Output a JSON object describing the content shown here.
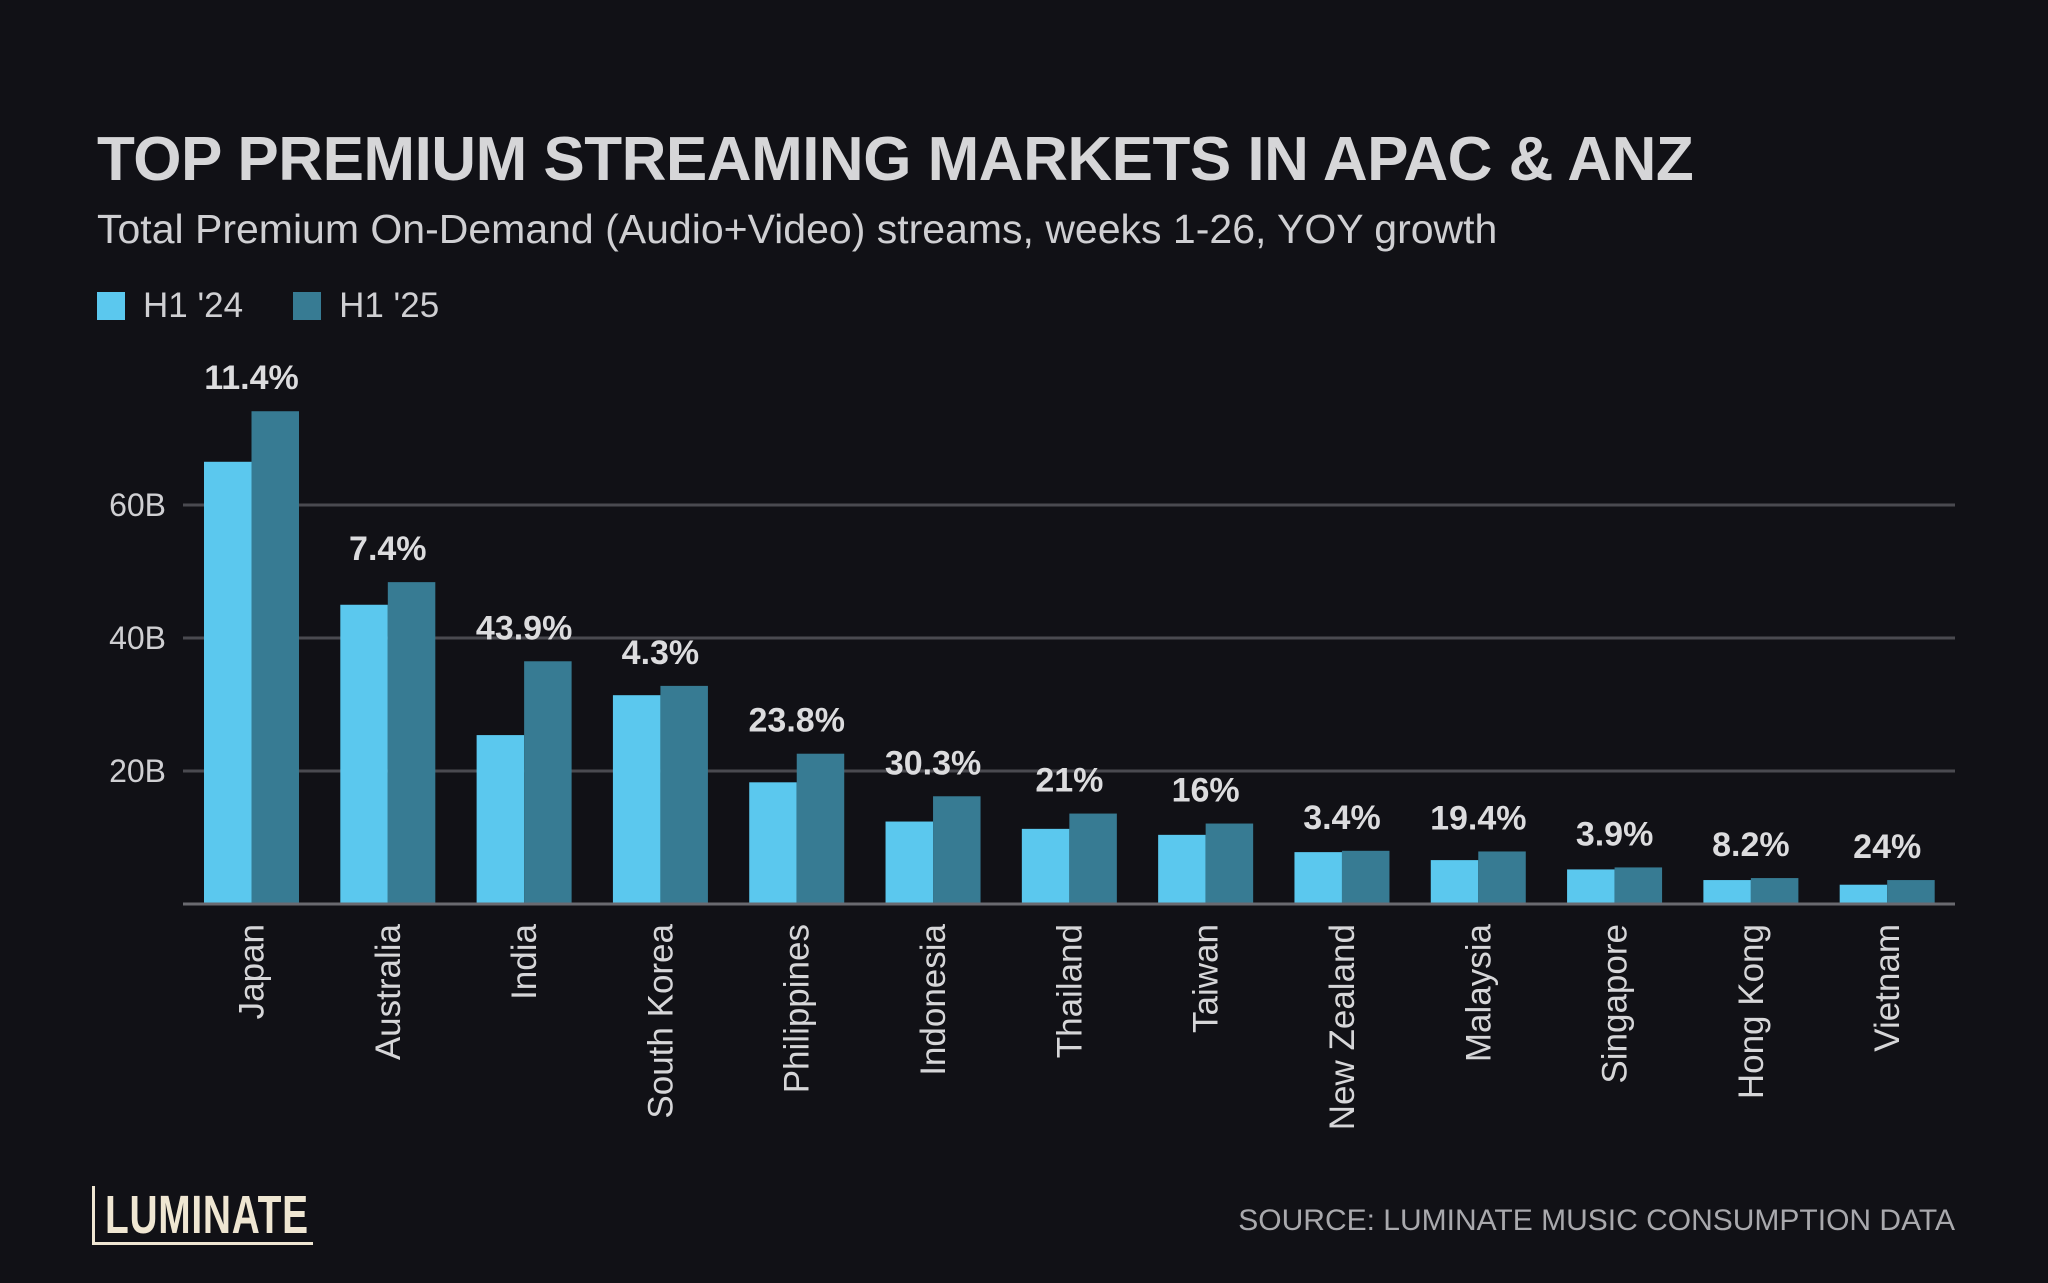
{
  "title": "TOP PREMIUM STREAMING MARKETS IN APAC & ANZ",
  "subtitle": "Total Premium On-Demand (Audio+Video) streams, weeks 1-26, YOY growth",
  "logo_text": "LUMINATE",
  "source": "SOURCE: LUMINATE MUSIC CONSUMPTION DATA",
  "colors": {
    "background": "#111116",
    "h1_24": "#5bc8ee",
    "h1_25": "#377b93",
    "gridline": "#4a4a50"
  },
  "chart_data": {
    "type": "bar",
    "title": "TOP PREMIUM STREAMING MARKETS IN APAC & ANZ",
    "subtitle": "Total Premium On-Demand (Audio+Video) streams, weeks 1-26, YOY growth",
    "categories": [
      "Japan",
      "Australia",
      "India",
      "South Korea",
      "Philippines",
      "Indonesia",
      "Thailand",
      "Taiwan",
      "New Zealand",
      "Malaysia",
      "Singapore",
      "Hong Kong",
      "Vietnam"
    ],
    "series": [
      {
        "name": "H1 '24",
        "color": "#5bc8ee",
        "values": [
          66.5,
          45.0,
          25.4,
          31.4,
          18.3,
          12.4,
          11.3,
          10.4,
          7.8,
          6.6,
          5.2,
          3.6,
          2.9
        ]
      },
      {
        "name": "H1 '25",
        "color": "#377b93",
        "values": [
          74.1,
          48.4,
          36.5,
          32.8,
          22.6,
          16.2,
          13.6,
          12.1,
          8.0,
          7.9,
          5.5,
          3.9,
          3.6
        ]
      }
    ],
    "growth_labels": [
      "11.4%",
      "7.4%",
      "43.9%",
      "4.3%",
      "23.8%",
      "30.3%",
      "21%",
      "16%",
      "3.4%",
      "19.4%",
      "3.9%",
      "8.2%",
      "24%"
    ],
    "y_ticks": [
      {
        "value": 20,
        "label": "20B"
      },
      {
        "value": 40,
        "label": "40B"
      },
      {
        "value": 60,
        "label": "60B"
      }
    ],
    "ylim": [
      0,
      78
    ],
    "unit": "billion streams",
    "grid": true,
    "legend_placement": "top-left"
  }
}
